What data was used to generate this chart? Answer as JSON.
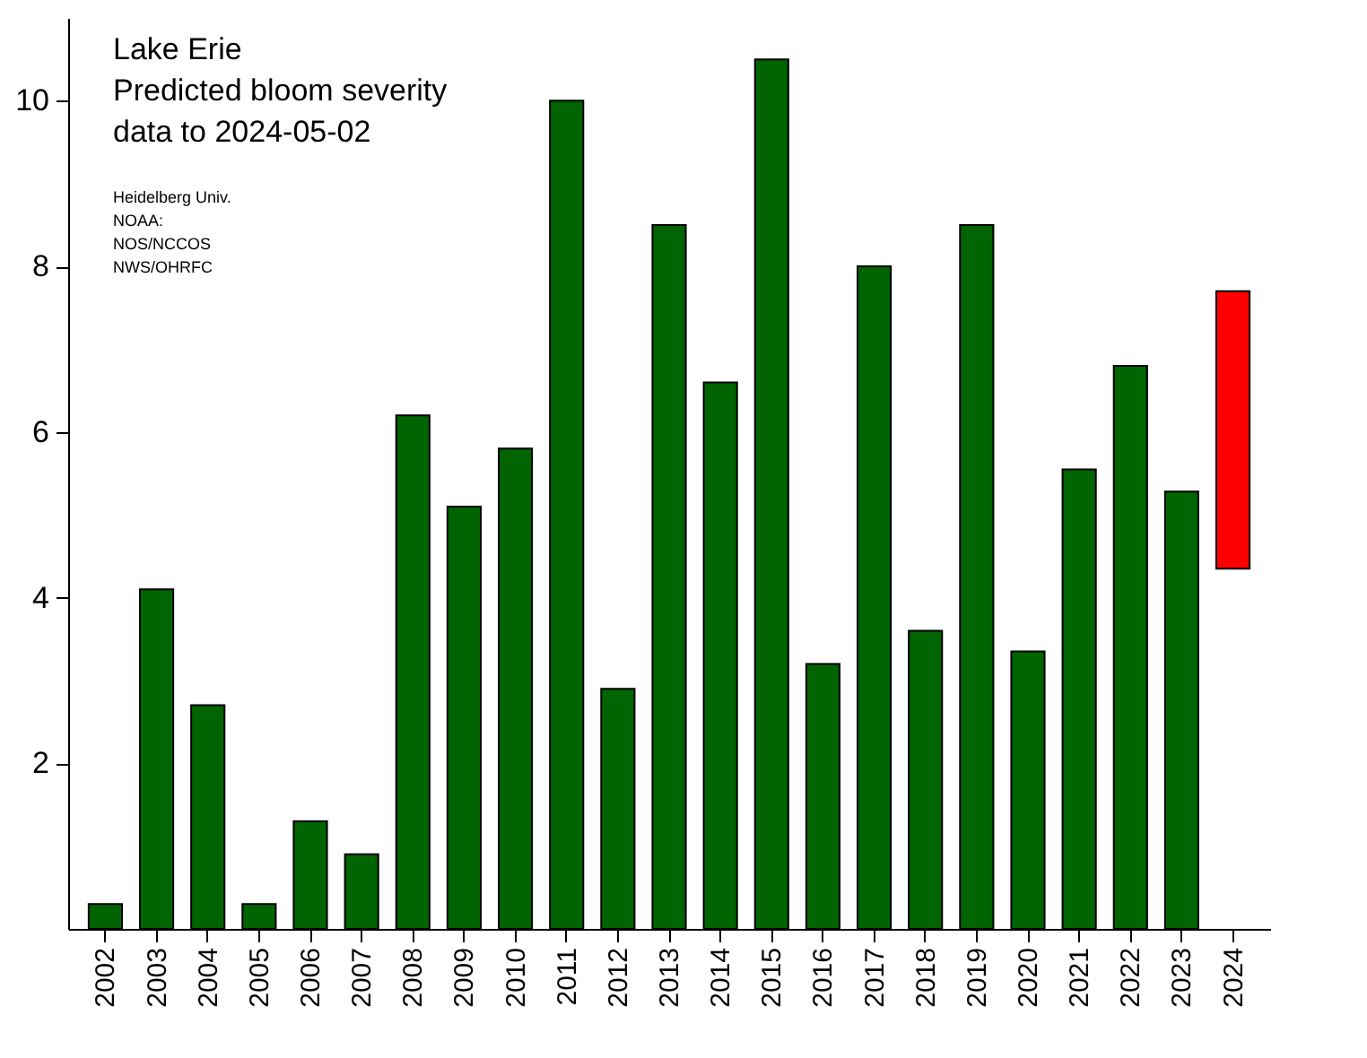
{
  "chart_data": {
    "type": "bar",
    "categories": [
      "2002",
      "2003",
      "2004",
      "2005",
      "2006",
      "2007",
      "2008",
      "2009",
      "2010",
      "2011",
      "2012",
      "2013",
      "2014",
      "2015",
      "2016",
      "2017",
      "2018",
      "2019",
      "2020",
      "2021",
      "2022",
      "2023",
      "2024"
    ],
    "values": [
      0.3,
      4.1,
      2.7,
      0.3,
      1.3,
      0.9,
      6.2,
      5.1,
      5.8,
      10.0,
      2.9,
      8.5,
      6.6,
      10.5,
      3.2,
      8.0,
      3.6,
      8.5,
      3.35,
      5.55,
      6.8,
      5.28,
      3.35
    ],
    "base": [
      0,
      0,
      0,
      0,
      0,
      0,
      0,
      0,
      0,
      0,
      0,
      0,
      0,
      0,
      0,
      0,
      0,
      0,
      0,
      0,
      0,
      0,
      4.35
    ],
    "colors": [
      "#006400",
      "#006400",
      "#006400",
      "#006400",
      "#006400",
      "#006400",
      "#006400",
      "#006400",
      "#006400",
      "#006400",
      "#006400",
      "#006400",
      "#006400",
      "#006400",
      "#006400",
      "#006400",
      "#006400",
      "#006400",
      "#006400",
      "#006400",
      "#006400",
      "#006400",
      "#ff0000"
    ],
    "ylim": [
      0,
      11
    ],
    "yticks": [
      2,
      4,
      6,
      8,
      10
    ],
    "annotations": [
      "Lake Erie",
      "Predicted bloom severity",
      "data to 2024-05-02",
      "Heidelberg Univ.",
      "NOAA:",
      "  NOS/NCCOS",
      "  NWS/OHRFC"
    ]
  }
}
